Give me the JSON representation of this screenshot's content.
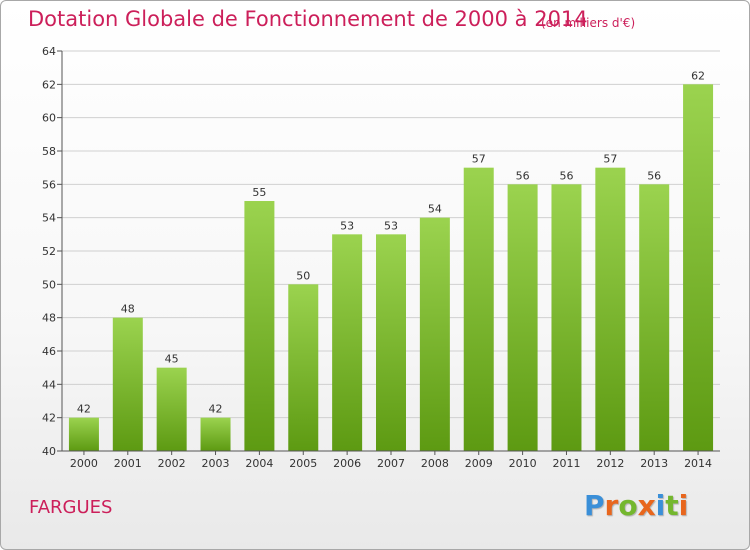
{
  "header": {
    "title": "Dotation Globale de Fonctionnement de 2000 à 2014",
    "subtitle": "(en milliers d'€)"
  },
  "footer": {
    "commune": "FARGUES",
    "logo_letters": [
      "P",
      "r",
      "o",
      "x",
      "i",
      "t",
      "i"
    ],
    "logo_colors": [
      "#3a8fd8",
      "#e8661d",
      "#74b72e",
      "#e8661d",
      "#3a8fd8",
      "#74b72e",
      "#e8661d"
    ]
  },
  "colors": {
    "bar_top": "#9bd34f",
    "bar_bottom": "#5d9a12",
    "grid": "#d0d0d0",
    "accent": "#cc1f5a"
  },
  "chart_data": {
    "type": "bar",
    "categories": [
      "2000",
      "2001",
      "2002",
      "2003",
      "2004",
      "2005",
      "2006",
      "2007",
      "2008",
      "2009",
      "2010",
      "2011",
      "2012",
      "2013",
      "2014"
    ],
    "values": [
      42,
      48,
      45,
      42,
      55,
      50,
      53,
      53,
      54,
      57,
      56,
      56,
      57,
      56,
      62
    ],
    "title": "Dotation Globale de Fonctionnement de 2000 à 2014",
    "subtitle": "(en milliers d'€)",
    "ylim": [
      40,
      64
    ],
    "yticks": [
      40,
      42,
      44,
      46,
      48,
      50,
      52,
      54,
      56,
      58,
      60,
      62,
      64
    ],
    "grid": true,
    "data_labels": true
  }
}
